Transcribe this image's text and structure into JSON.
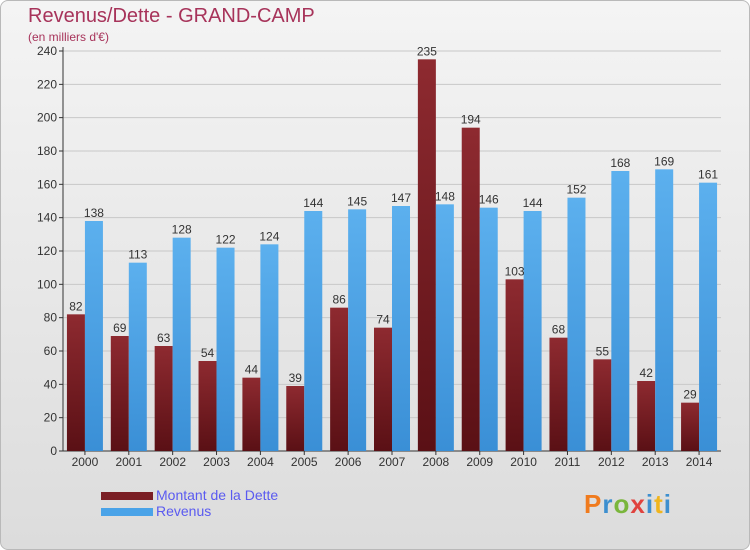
{
  "title": "Revenus/Dette - GRAND-CAMP",
  "subtitle": "(en milliers d'€)",
  "legend": {
    "debt_label": "Montant de la Dette",
    "revenue_label": "Revenus"
  },
  "logo": {
    "text": "Proxiti"
  },
  "colors": {
    "debt": "#7a1e24",
    "revenue": "#4aa3e8",
    "title": "#a7335a",
    "legend_text": "#5a5af0"
  },
  "chart_data": {
    "type": "bar",
    "title": "Revenus/Dette - GRAND-CAMP",
    "subtitle": "(en milliers d'€)",
    "categories": [
      "2000",
      "2001",
      "2002",
      "2003",
      "2004",
      "2005",
      "2006",
      "2007",
      "2008",
      "2009",
      "2010",
      "2011",
      "2012",
      "2013",
      "2014"
    ],
    "series": [
      {
        "name": "Montant de la Dette",
        "values": [
          82,
          69,
          63,
          54,
          44,
          39,
          86,
          74,
          235,
          194,
          103,
          68,
          55,
          42,
          29
        ]
      },
      {
        "name": "Revenus",
        "values": [
          138,
          113,
          128,
          122,
          124,
          144,
          145,
          147,
          148,
          146,
          144,
          152,
          168,
          169,
          161
        ]
      }
    ],
    "ylim": [
      0,
      240
    ],
    "yticks": [
      0,
      20,
      40,
      60,
      80,
      100,
      120,
      140,
      160,
      180,
      200,
      220,
      240
    ],
    "grid": true,
    "legend_position": "bottom-left"
  }
}
